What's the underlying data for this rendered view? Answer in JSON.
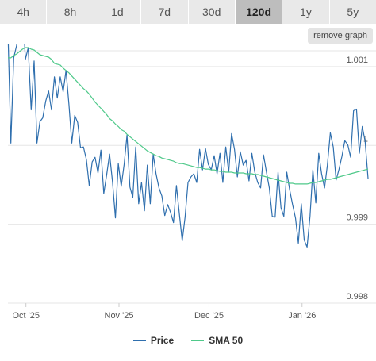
{
  "tabs": [
    {
      "label": "4h",
      "active": false
    },
    {
      "label": "8h",
      "active": false
    },
    {
      "label": "1d",
      "active": false
    },
    {
      "label": "7d",
      "active": false
    },
    {
      "label": "30d",
      "active": false
    },
    {
      "label": "120d",
      "active": true
    },
    {
      "label": "1y",
      "active": false
    },
    {
      "label": "5y",
      "active": false
    }
  ],
  "remove_graph_label": "remove graph",
  "colors": {
    "price": "#2f6fae",
    "sma": "#4fc98a",
    "grid": "#e6e6e6",
    "axis_text": "#555555"
  },
  "chart_data": {
    "type": "line",
    "ylim": [
      0.998,
      1.0012
    ],
    "yticks": [
      {
        "value": 0.998,
        "label": "0.998"
      },
      {
        "value": 0.999,
        "label": "0.999"
      },
      {
        "value": 1.0,
        "label": "1"
      },
      {
        "value": 1.001,
        "label": "1.001"
      }
    ],
    "xrange": [
      0,
      120
    ],
    "xticks": [
      {
        "pos": 6,
        "label": "Oct '25"
      },
      {
        "pos": 37,
        "label": "Nov '25"
      },
      {
        "pos": 67,
        "label": "Dec '25"
      },
      {
        "pos": 98,
        "label": "Jan '26"
      }
    ],
    "grid": true,
    "legend_position": "bottom-center",
    "series": [
      {
        "name": "Price",
        "values": [
          1.00146,
          1.00003,
          1.00111,
          1.00127,
          1.00177,
          1.00182,
          1.00109,
          1.00124,
          1.00045,
          1.00107,
          1.00003,
          1.0003,
          1.00035,
          1.00056,
          1.00069,
          1.00045,
          1.00087,
          1.0006,
          1.00087,
          1.00068,
          1.00095,
          1.00052,
          1.00003,
          1.00038,
          1.00029,
          0.99997,
          0.99998,
          0.99982,
          0.99949,
          0.99979,
          0.99985,
          0.99965,
          0.99994,
          0.99939,
          0.99963,
          0.99989,
          0.99954,
          0.99908,
          0.99977,
          0.99948,
          0.99976,
          1.00013,
          0.99947,
          0.99934,
          0.99998,
          0.99926,
          0.99953,
          0.99917,
          0.99975,
          0.99926,
          0.99989,
          0.99964,
          0.99946,
          0.99936,
          0.99911,
          0.99925,
          0.99915,
          0.99902,
          0.99949,
          0.99914,
          0.99879,
          0.99909,
          0.99953,
          0.9996,
          0.99964,
          0.99953,
          0.99995,
          0.99969,
          0.99996,
          0.99976,
          0.99969,
          0.99987,
          0.99964,
          0.9999,
          0.99953,
          0.99998,
          0.99966,
          1.00015,
          0.99995,
          0.9996,
          0.99992,
          0.99975,
          0.99981,
          0.99955,
          0.9999,
          0.99966,
          0.99953,
          0.99946,
          0.99988,
          0.99966,
          0.99946,
          0.9991,
          0.99909,
          0.99966,
          0.99921,
          0.9991,
          0.99966,
          0.99944,
          0.99925,
          0.99908,
          0.99876,
          0.99926,
          0.9988,
          0.99871,
          0.9991,
          0.99969,
          0.99927,
          0.9999,
          0.99964,
          0.99946,
          0.99975,
          1.00016,
          0.99998,
          0.99956,
          0.9997,
          0.99986,
          1.00006,
          1.00001,
          0.99985,
          1.00044,
          1.00046,
          0.9999,
          1.00024,
          1.00005,
          0.99958
        ]
      },
      {
        "name": "SMA 50",
        "values": [
          1.00111,
          1.00111,
          1.00114,
          1.00116,
          1.00119,
          1.00122,
          1.00124,
          1.00124,
          1.00122,
          1.00121,
          1.00118,
          1.00115,
          1.00114,
          1.00113,
          1.00112,
          1.00109,
          1.00104,
          1.00103,
          1.00102,
          1.00098,
          1.00095,
          1.00092,
          1.00088,
          1.00084,
          1.0008,
          1.00076,
          1.00072,
          1.00069,
          1.00065,
          1.0006,
          1.00055,
          1.00051,
          1.00047,
          1.00043,
          1.00039,
          1.00034,
          1.00031,
          1.00027,
          1.00024,
          1.0002,
          1.00018,
          1.00014,
          1.00011,
          1.00008,
          1.00005,
          1.00002,
          0.99999,
          0.99996,
          0.99993,
          0.99991,
          0.99989,
          0.99987,
          0.99986,
          0.99984,
          0.99983,
          0.99982,
          0.99981,
          0.9998,
          0.99978,
          0.99977,
          0.99977,
          0.99976,
          0.99975,
          0.99974,
          0.99973,
          0.99972,
          0.99972,
          0.99971,
          0.9997,
          0.9997,
          0.99969,
          0.99969,
          0.99968,
          0.99967,
          0.99967,
          0.99966,
          0.99966,
          0.99966,
          0.99965,
          0.99965,
          0.99965,
          0.99965,
          0.99964,
          0.99964,
          0.99964,
          0.99963,
          0.99963,
          0.99962,
          0.99961,
          0.9996,
          0.99959,
          0.99958,
          0.99957,
          0.99956,
          0.99955,
          0.99954,
          0.99953,
          0.99952,
          0.99952,
          0.99951,
          0.99951,
          0.99951,
          0.99951,
          0.99951,
          0.99952,
          0.99953,
          0.99953,
          0.99954,
          0.99955,
          0.99956,
          0.99957,
          0.99957,
          0.99958,
          0.99959,
          0.9996,
          0.99961,
          0.99962,
          0.99963,
          0.99964,
          0.99965,
          0.99966,
          0.99967,
          0.99968,
          0.99969,
          0.9997
        ]
      }
    ]
  }
}
